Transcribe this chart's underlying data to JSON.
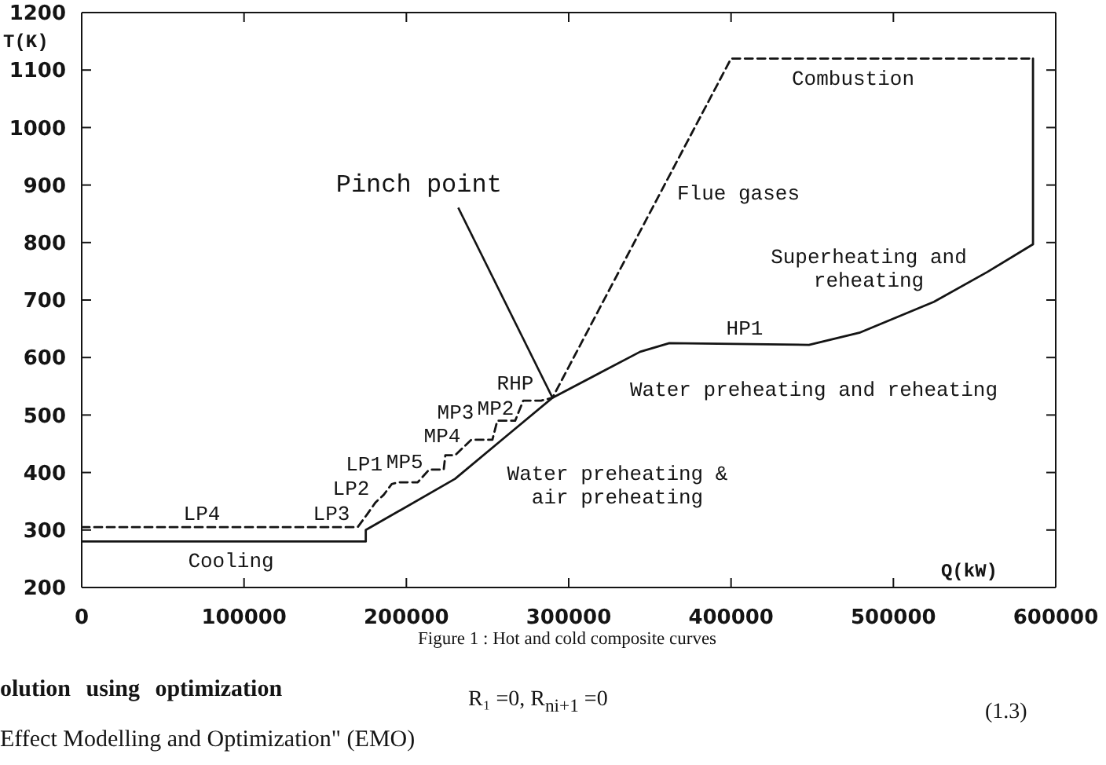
{
  "chart_data": {
    "type": "line",
    "xlabel": "Q(kW)",
    "ylabel": "T(K)",
    "xlim": [
      0,
      600000
    ],
    "xticks": [
      0,
      100000,
      200000,
      300000,
      400000,
      500000,
      600000
    ],
    "ylim": [
      200,
      1200
    ],
    "yticks": [
      200,
      300,
      400,
      500,
      600,
      700,
      800,
      900,
      1000,
      1100,
      1200
    ],
    "marker": "none",
    "series": [
      {
        "color": "#141414",
        "line_style": "solid",
        "x": [
          0,
          175000,
          175000,
          230000,
          261000,
          290000,
          344000,
          362000,
          448000,
          479000,
          525000,
          558000,
          586000,
          586000
        ],
        "values": [
          280,
          280,
          300,
          389,
          462,
          530,
          610,
          625,
          622,
          643,
          697,
          749,
          797,
          1120
        ]
      },
      {
        "color": "#141414",
        "line_style": "dashed",
        "x": [
          0,
          170000,
          176000,
          181000,
          186000,
          191000,
          195000,
          207000,
          214000,
          223000,
          224000,
          230000,
          240000,
          253000,
          256000,
          267000,
          272000,
          283000,
          290000,
          400000,
          586000
        ],
        "values": [
          305,
          305,
          328,
          348,
          361,
          380,
          383,
          383,
          405,
          405,
          430,
          430,
          457,
          457,
          490,
          490,
          525,
          525,
          530,
          1120,
          1120
        ]
      }
    ],
    "annotations": [
      {
        "text": "Pinch point",
        "x": 290000,
        "y": 530
      },
      "Combustion",
      "Flue gases",
      "Superheating and\nreheating",
      "HP1",
      "Water preheating and reheating",
      "Water preheating &\nair preheating",
      "RHP",
      "MP2",
      "MP3",
      "MP4",
      "MP5",
      "LP1",
      "LP2",
      "LP3",
      "LP4",
      "Cooling",
      "Figure 1 : Hot and cold composite curves",
      "olution using optimization",
      "R₁ =0, R$_{ni+1}$ =0",
      "(1.3)",
      "Effect Modelling and Optimization\" (EMO)"
    ]
  }
}
